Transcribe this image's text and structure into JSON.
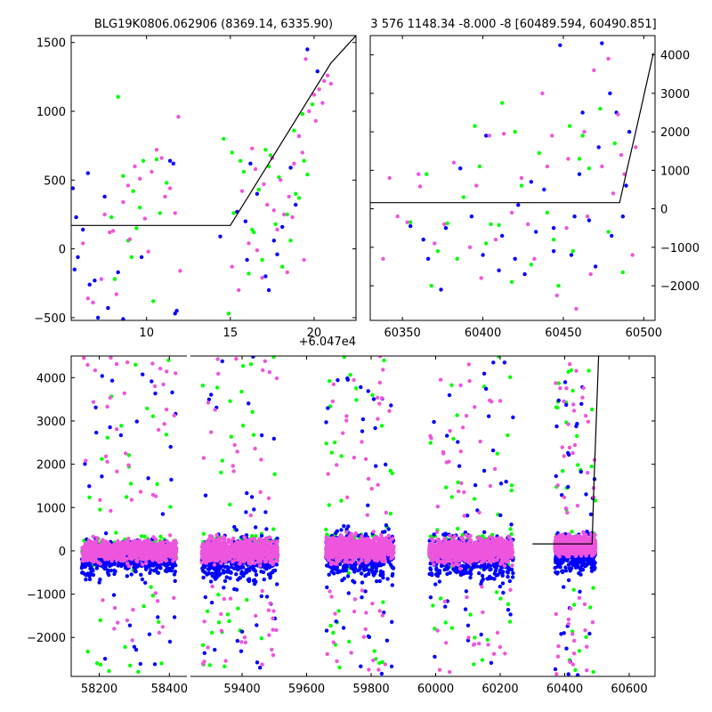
{
  "colors": {
    "green": "#00ff00",
    "blue": "#0000ff",
    "pink": "#ee55dd",
    "model": "#000000"
  },
  "chart_data": [
    {
      "type": "scatter",
      "title": "BLG19K0806.062906 (8369.14, 6335.90)",
      "xlabel": "",
      "ylabel": "",
      "xlim": [
        5.5,
        22.5
      ],
      "ylim": [
        -520,
        1550
      ],
      "x_offset_label": "+6.047e4",
      "xticks": [
        10,
        15,
        20
      ],
      "yticks": [
        -500,
        0,
        500,
        1000,
        1500
      ],
      "y_axis_side": "left",
      "grid": false,
      "model_line": [
        [
          5.5,
          170
        ],
        [
          15.0,
          170
        ],
        [
          21.0,
          1350
        ],
        [
          22.5,
          1550
        ]
      ],
      "series": [
        {
          "color": "green",
          "points": [
            [
              8.3,
              1105
            ],
            [
              9.8,
              640
            ],
            [
              10.6,
              650
            ],
            [
              9.2,
              420
            ],
            [
              8.6,
              530
            ],
            [
              7.9,
              230
            ],
            [
              8.9,
              60
            ],
            [
              9.1,
              -60
            ],
            [
              9.6,
              300
            ],
            [
              10.4,
              -380
            ],
            [
              10.8,
              260
            ],
            [
              11.2,
              480
            ],
            [
              8.1,
              -220
            ],
            [
              9.4,
              150
            ],
            [
              14.6,
              800
            ],
            [
              15.2,
              260
            ],
            [
              15.8,
              560
            ],
            [
              16.3,
              140
            ],
            [
              16.9,
              -80
            ],
            [
              17.4,
              680
            ],
            [
              17.9,
              520
            ],
            [
              18.4,
              250
            ],
            [
              18.8,
              860
            ],
            [
              19.3,
              980
            ],
            [
              19.6,
              540
            ],
            [
              19.9,
              1050
            ],
            [
              14.9,
              -470
            ],
            [
              16.1,
              -180
            ],
            [
              17.1,
              720
            ],
            [
              18.1,
              -130
            ],
            [
              19.1,
              370
            ],
            [
              15.6,
              640
            ],
            [
              16.7,
              430
            ],
            [
              17.7,
              180
            ],
            [
              18.6,
              60
            ],
            [
              19.4,
              640
            ],
            [
              15.1,
              700
            ],
            [
              16.4,
              120
            ],
            [
              17.3,
              600
            ],
            [
              18.9,
              400
            ]
          ]
        },
        {
          "color": "blue",
          "points": [
            [
              5.6,
              440
            ],
            [
              5.8,
              230
            ],
            [
              6.2,
              140
            ],
            [
              5.9,
              -60
            ],
            [
              6.6,
              -260
            ],
            [
              7.1,
              -500
            ],
            [
              7.7,
              -430
            ],
            [
              8.6,
              -510
            ],
            [
              8.3,
              -170
            ],
            [
              6.5,
              550
            ],
            [
              7.5,
              380
            ],
            [
              11.4,
              640
            ],
            [
              11.6,
              620
            ],
            [
              11.8,
              -450
            ],
            [
              11.7,
              -470
            ],
            [
              5.7,
              -150
            ],
            [
              6.9,
              -230
            ],
            [
              9.7,
              -60
            ],
            [
              14.4,
              90
            ],
            [
              15.4,
              270
            ],
            [
              16.0,
              -80
            ],
            [
              16.6,
              400
            ],
            [
              17.1,
              -200
            ],
            [
              17.6,
              60
            ],
            [
              18.1,
              160
            ],
            [
              18.6,
              590
            ],
            [
              19.1,
              820
            ],
            [
              19.6,
              1450
            ],
            [
              20.2,
              1290
            ],
            [
              16.2,
              620
            ],
            [
              17.8,
              -40
            ],
            [
              18.9,
              320
            ],
            [
              15.9,
              200
            ],
            [
              17.3,
              -300
            ]
          ]
        },
        {
          "color": "pink",
          "points": [
            [
              6.5,
              -360
            ],
            [
              6.8,
              -390
            ],
            [
              7.3,
              -220
            ],
            [
              7.8,
              120
            ],
            [
              8.2,
              -330
            ],
            [
              8.6,
              340
            ],
            [
              8.9,
              460
            ],
            [
              9.3,
              600
            ],
            [
              9.6,
              510
            ],
            [
              10.1,
              -20
            ],
            [
              10.6,
              720
            ],
            [
              10.3,
              560
            ],
            [
              11.1,
              380
            ],
            [
              11.7,
              260
            ],
            [
              11.9,
              960
            ],
            [
              12.0,
              -160
            ],
            [
              7.5,
              250
            ],
            [
              8.0,
              130
            ],
            [
              9.0,
              70
            ],
            [
              9.9,
              220
            ],
            [
              10.9,
              660
            ],
            [
              11.4,
              440
            ],
            [
              6.2,
              40
            ],
            [
              15.1,
              -130
            ],
            [
              15.7,
              420
            ],
            [
              16.1,
              40
            ],
            [
              16.5,
              580
            ],
            [
              16.9,
              -210
            ],
            [
              17.2,
              320
            ],
            [
              17.5,
              660
            ],
            [
              17.8,
              140
            ],
            [
              18.2,
              250
            ],
            [
              18.5,
              380
            ],
            [
              18.8,
              620
            ],
            [
              19.1,
              820
            ],
            [
              19.4,
              -80
            ],
            [
              19.7,
              1000
            ],
            [
              20.0,
              1120
            ],
            [
              20.3,
              1160
            ],
            [
              20.6,
              1220
            ],
            [
              20.8,
              1260
            ],
            [
              21.0,
              1200
            ],
            [
              16.3,
              730
            ],
            [
              17.0,
              470
            ],
            [
              18.0,
              500
            ],
            [
              18.7,
              230
            ],
            [
              19.5,
              1380
            ],
            [
              20.5,
              1060
            ],
            [
              15.5,
              -300
            ],
            [
              16.6,
              -10
            ],
            [
              17.6,
              280
            ],
            [
              18.4,
              -170
            ],
            [
              19.3,
              700
            ],
            [
              20.1,
              930
            ]
          ]
        }
      ]
    },
    {
      "type": "scatter",
      "title": "3 576 1148.34 -8.000 -8 [60489.594, 60490.851]",
      "xlabel": "",
      "ylabel": "",
      "xlim": [
        60330,
        60507
      ],
      "ylim": [
        -2900,
        4500
      ],
      "xticks": [
        60350,
        60400,
        60450,
        60500
      ],
      "yticks": [
        -2000,
        -1000,
        0,
        1000,
        2000,
        3000,
        4000
      ],
      "y_axis_side": "right",
      "grid": false,
      "model_line": [
        [
          60330,
          160
        ],
        [
          60485,
          160
        ],
        [
          60490,
          1100
        ],
        [
          60495,
          2000
        ],
        [
          60506,
          4050
        ]
      ],
      "series": [
        {
          "color": "green",
          "points": [
            [
              60355,
              -350
            ],
            [
              60365,
              900
            ],
            [
              60372,
              -1100
            ],
            [
              60378,
              -380
            ],
            [
              60388,
              300
            ],
            [
              60395,
              2150
            ],
            [
              60402,
              -900
            ],
            [
              60410,
              -420
            ],
            [
              60412,
              2750
            ],
            [
              60424,
              600
            ],
            [
              60430,
              -1450
            ],
            [
              60435,
              1450
            ],
            [
              60444,
              -800
            ],
            [
              60447,
              -2000
            ],
            [
              60454,
              2150
            ],
            [
              60462,
              1900
            ],
            [
              60466,
              1050
            ],
            [
              60473,
              2600
            ],
            [
              60478,
              -600
            ],
            [
              60487,
              -1650
            ],
            [
              60368,
              -2000
            ],
            [
              60384,
              -1300
            ],
            [
              60398,
              1100
            ],
            [
              60418,
              -1900
            ],
            [
              60440,
              -100
            ],
            [
              60460,
              1300
            ],
            [
              60482,
              1700
            ],
            [
              60420,
              2000
            ],
            [
              60456,
              -1100
            ],
            [
              60405,
              -400
            ]
          ]
        },
        {
          "color": "blue",
          "points": [
            [
              60355,
              -450
            ],
            [
              60366,
              -1300
            ],
            [
              60374,
              -2100
            ],
            [
              60386,
              1050
            ],
            [
              60393,
              -200
            ],
            [
              60402,
              1900
            ],
            [
              60412,
              -700
            ],
            [
              60420,
              -1300
            ],
            [
              60426,
              -1700
            ],
            [
              60433,
              -600
            ],
            [
              60438,
              500
            ],
            [
              60444,
              -1100
            ],
            [
              60448,
              4250
            ],
            [
              60455,
              -1200
            ],
            [
              60460,
              900
            ],
            [
              60462,
              2500
            ],
            [
              60470,
              -1500
            ],
            [
              60474,
              4300
            ],
            [
              60479,
              3000
            ],
            [
              60483,
              2500
            ],
            [
              60487,
              -200
            ],
            [
              60491,
              2000
            ],
            [
              60400,
              -1200
            ],
            [
              60444,
              -500
            ],
            [
              60480,
              -700
            ],
            [
              60377,
              -500
            ],
            [
              60422,
              100
            ],
            [
              60466,
              -300
            ],
            [
              60489,
              600
            ],
            [
              60363,
              -800
            ],
            [
              60430,
              700
            ],
            [
              60472,
              1600
            ],
            [
              60410,
              -1600
            ],
            [
              60457,
              -200
            ]
          ]
        },
        {
          "color": "pink",
          "points": [
            [
              60338,
              -1300
            ],
            [
              60342,
              800
            ],
            [
              60353,
              -350
            ],
            [
              60361,
              580
            ],
            [
              60370,
              -900
            ],
            [
              60382,
              1200
            ],
            [
              60392,
              -1000
            ],
            [
              60399,
              -1800
            ],
            [
              60404,
              1900
            ],
            [
              60408,
              -800
            ],
            [
              60413,
              1950
            ],
            [
              60424,
              800
            ],
            [
              60432,
              -1300
            ],
            [
              60437,
              3000
            ],
            [
              60443,
              1900
            ],
            [
              60446,
              -2250
            ],
            [
              60453,
              1300
            ],
            [
              60458,
              -2600
            ],
            [
              60463,
              2000
            ],
            [
              60467,
              -1700
            ],
            [
              60469,
              3600
            ],
            [
              60478,
              3900
            ],
            [
              60484,
              2450
            ],
            [
              60486,
              1400
            ],
            [
              60493,
              -1200
            ],
            [
              60495,
              1600
            ],
            [
              60347,
              -200
            ],
            [
              60376,
              -400
            ],
            [
              60418,
              -100
            ],
            [
              60452,
              -500
            ],
            [
              60474,
              1100
            ],
            [
              60488,
              900
            ],
            [
              60396,
              600
            ],
            [
              60428,
              -400
            ],
            [
              60465,
              -200
            ],
            [
              60481,
              400
            ],
            [
              60360,
              900
            ],
            [
              60440,
              1100
            ]
          ]
        }
      ]
    },
    {
      "type": "scatter",
      "title": "",
      "xlabel": "",
      "ylabel": "",
      "segments": [
        {
          "xlim": [
            58120,
            58450
          ],
          "xticks": [
            58200,
            58400
          ]
        },
        {
          "xlim": [
            59240,
            60680
          ],
          "xticks": [
            59400,
            59600,
            59800,
            60000,
            60200,
            60400,
            60600
          ]
        }
      ],
      "ylim": [
        -2900,
        4500
      ],
      "yticks": [
        -2000,
        -1000,
        0,
        1000,
        2000,
        3000,
        4000
      ],
      "grid": false,
      "model_line": [
        [
          60300,
          160
        ],
        [
          60485,
          160
        ],
        [
          60490,
          1400
        ],
        [
          60505,
          4500
        ]
      ],
      "groups": [
        {
          "xmin": 58150,
          "xmax": 58420,
          "center": 0,
          "spread": 260,
          "outlier_top": 4500,
          "outlier_bottom": -2850
        },
        {
          "xmin": 59275,
          "xmax": 59510,
          "center": 0,
          "spread": 300,
          "outlier_top": 4500,
          "outlier_bottom": -2700
        },
        {
          "xmin": 59660,
          "xmax": 59870,
          "center": 50,
          "spread": 330,
          "outlier_top": 4500,
          "outlier_bottom": -2850
        },
        {
          "xmin": 59980,
          "xmax": 60240,
          "center": 0,
          "spread": 300,
          "outlier_top": 4500,
          "outlier_bottom": -2800
        },
        {
          "xmin": 60370,
          "xmax": 60495,
          "center": 120,
          "spread": 240,
          "outlier_top": 4400,
          "outlier_bottom": -2900
        }
      ]
    }
  ]
}
